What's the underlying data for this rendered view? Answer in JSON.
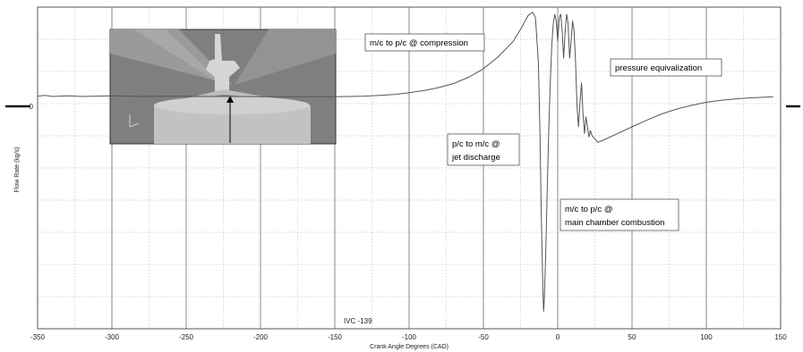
{
  "chart_data": {
    "type": "line",
    "xlabel": "Crank Angle Degrees (CAD)",
    "ylabel": "Flow Rate (kg/s)",
    "xlim": [
      -350,
      150
    ],
    "xticks": [
      -350,
      -300,
      -250,
      -200,
      -150,
      -100,
      -50,
      0,
      50,
      100,
      150
    ],
    "yticks": [
      0
    ],
    "ylim": [
      -6.8,
      2.6
    ],
    "grid": true,
    "series": [
      {
        "points": [
          [
            -350,
            0.0
          ],
          [
            -345,
            0.02
          ],
          [
            -340,
            -0.01
          ],
          [
            -330,
            0.01
          ],
          [
            -320,
            -0.01
          ],
          [
            -300,
            0.01
          ],
          [
            -280,
            -0.01
          ],
          [
            -260,
            0.0
          ],
          [
            -240,
            -0.01
          ],
          [
            -220,
            -0.01
          ],
          [
            -200,
            -0.02
          ],
          [
            -180,
            -0.02
          ],
          [
            -160,
            -0.02
          ],
          [
            -150,
            -0.02
          ],
          [
            -140,
            -0.01
          ],
          [
            -130,
            0.0
          ],
          [
            -120,
            0.02
          ],
          [
            -110,
            0.05
          ],
          [
            -100,
            0.1
          ],
          [
            -90,
            0.16
          ],
          [
            -80,
            0.25
          ],
          [
            -70,
            0.37
          ],
          [
            -60,
            0.55
          ],
          [
            -50,
            0.8
          ],
          [
            -40,
            1.15
          ],
          [
            -30,
            1.6
          ],
          [
            -25,
            1.95
          ],
          [
            -20,
            2.35
          ],
          [
            -17,
            2.45
          ],
          [
            -15,
            2.3
          ],
          [
            -13,
            1.0
          ],
          [
            -12,
            -1.0
          ],
          [
            -11,
            -3.5
          ],
          [
            -10,
            -5.6
          ],
          [
            -9.5,
            -6.3
          ],
          [
            -9,
            -5.9
          ],
          [
            -8,
            -4.5
          ],
          [
            -7,
            -2.6
          ],
          [
            -6,
            -1.0
          ],
          [
            -5,
            0.4
          ],
          [
            -4,
            1.5
          ],
          [
            -3,
            2.1
          ],
          [
            -2,
            2.4
          ],
          [
            -1,
            2.2
          ],
          [
            0,
            1.6
          ],
          [
            1,
            2.3
          ],
          [
            2,
            2.4
          ],
          [
            3,
            1.9
          ],
          [
            4,
            1.1
          ],
          [
            5,
            1.9
          ],
          [
            6,
            2.4
          ],
          [
            7,
            2.1
          ],
          [
            8,
            1.1
          ],
          [
            9,
            1.6
          ],
          [
            10,
            2.2
          ],
          [
            11,
            1.9
          ],
          [
            12,
            1.0
          ],
          [
            13,
            -0.3
          ],
          [
            14,
            -0.9
          ],
          [
            15,
            -0.2
          ],
          [
            16,
            0.4
          ],
          [
            17,
            -0.5
          ],
          [
            18,
            -1.1
          ],
          [
            19,
            -0.6
          ],
          [
            20,
            -0.9
          ],
          [
            21,
            -1.2
          ],
          [
            22,
            -1.0
          ],
          [
            23,
            -1.15
          ],
          [
            25,
            -1.25
          ],
          [
            27,
            -1.35
          ],
          [
            30,
            -1.3
          ],
          [
            35,
            -1.2
          ],
          [
            40,
            -1.1
          ],
          [
            50,
            -0.9
          ],
          [
            60,
            -0.7
          ],
          [
            70,
            -0.52
          ],
          [
            80,
            -0.38
          ],
          [
            90,
            -0.27
          ],
          [
            100,
            -0.18
          ],
          [
            110,
            -0.12
          ],
          [
            120,
            -0.08
          ],
          [
            130,
            -0.05
          ],
          [
            140,
            -0.03
          ],
          [
            145,
            -0.02
          ]
        ]
      }
    ],
    "annotations": [
      {
        "text_lines": [
          "m/c to p/c @ compression"
        ]
      },
      {
        "text_lines": [
          "pressure equivalization"
        ]
      },
      {
        "text_lines": [
          "p/c to m/c @",
          "jet discharge"
        ]
      },
      {
        "text_lines": [
          "m/c to p/c @",
          "main chamber combustion"
        ]
      }
    ],
    "marker_label": "IVC -139",
    "y_zero_label": "0"
  }
}
